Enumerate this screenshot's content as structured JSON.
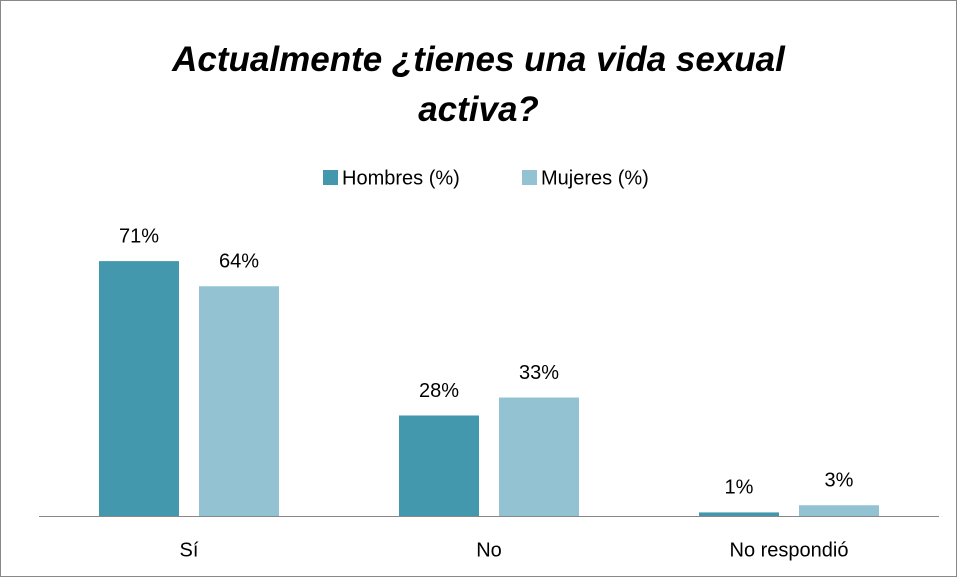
{
  "chart_data": {
    "type": "bar",
    "title": "Actualmente ¿tienes una vida sexual activa?",
    "categories": [
      "Sí",
      "No",
      "No respondió"
    ],
    "series": [
      {
        "name": "Hombres (%)",
        "color": "#4398ae",
        "values": [
          71,
          28,
          1
        ],
        "value_labels": [
          "71%",
          "28%",
          "1%"
        ]
      },
      {
        "name": "Mujeres (%)",
        "color": "#93c3d3",
        "values": [
          64,
          33,
          3
        ],
        "value_labels": [
          "64%",
          "33%",
          "3%"
        ]
      }
    ],
    "legend": "top"
  }
}
